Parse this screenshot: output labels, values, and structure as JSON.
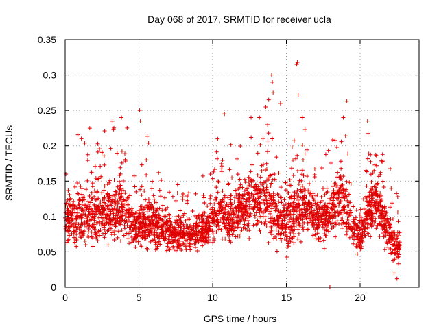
{
  "chart_data": {
    "type": "scatter",
    "title": "Day 068 of 2017, SRMTID for receiver ucla",
    "xlabel": "GPS time / hours",
    "ylabel": "SRMTID / TECUs",
    "xlim": [
      0,
      24
    ],
    "ylim": [
      0,
      0.35
    ],
    "xticks": [
      0,
      5,
      10,
      15,
      20
    ],
    "xtick_labels": [
      "0",
      "5",
      "10",
      "15",
      "20"
    ],
    "yticks": [
      0,
      0.05,
      0.1,
      0.15,
      0.2,
      0.25,
      0.3,
      0.35
    ],
    "ytick_labels": [
      "0",
      "0.05",
      "0.1",
      "0.15",
      "0.2",
      "0.25",
      "0.3",
      "0.35"
    ],
    "grid": true,
    "marker": "plus",
    "marker_color": "#e00000",
    "approx_point_count": 3000,
    "envelope": {
      "x": [
        0.0,
        0.5,
        1.0,
        1.5,
        2.0,
        2.5,
        3.0,
        3.5,
        4.0,
        4.5,
        5.0,
        5.5,
        6.0,
        6.5,
        7.0,
        7.5,
        8.0,
        8.5,
        9.0,
        9.5,
        10.0,
        10.5,
        11.0,
        11.5,
        12.0,
        12.5,
        13.0,
        13.5,
        14.0,
        14.5,
        15.0,
        15.5,
        16.0,
        16.5,
        17.0,
        17.5,
        18.0,
        18.5,
        19.0,
        19.5,
        20.0,
        20.5,
        21.0,
        21.5,
        22.0,
        22.5
      ],
      "median": [
        0.1,
        0.095,
        0.1,
        0.105,
        0.1,
        0.105,
        0.11,
        0.105,
        0.11,
        0.09,
        0.085,
        0.095,
        0.09,
        0.085,
        0.08,
        0.075,
        0.075,
        0.075,
        0.08,
        0.085,
        0.095,
        0.105,
        0.1,
        0.1,
        0.11,
        0.12,
        0.12,
        0.125,
        0.115,
        0.09,
        0.095,
        0.105,
        0.115,
        0.11,
        0.1,
        0.1,
        0.105,
        0.13,
        0.11,
        0.08,
        0.07,
        0.11,
        0.12,
        0.1,
        0.075,
        0.055
      ],
      "spread": [
        0.04,
        0.04,
        0.045,
        0.05,
        0.045,
        0.045,
        0.05,
        0.05,
        0.05,
        0.04,
        0.04,
        0.04,
        0.04,
        0.035,
        0.03,
        0.03,
        0.03,
        0.03,
        0.03,
        0.035,
        0.04,
        0.045,
        0.04,
        0.045,
        0.05,
        0.055,
        0.055,
        0.06,
        0.06,
        0.045,
        0.05,
        0.055,
        0.055,
        0.05,
        0.045,
        0.045,
        0.05,
        0.055,
        0.05,
        0.035,
        0.03,
        0.045,
        0.045,
        0.04,
        0.035,
        0.03
      ]
    },
    "notable_points": [
      {
        "x": 0.05,
        "y": 0.16
      },
      {
        "x": 1.1,
        "y": 0.21
      },
      {
        "x": 3.3,
        "y": 0.225
      },
      {
        "x": 4.2,
        "y": 0.225
      },
      {
        "x": 5.05,
        "y": 0.25
      },
      {
        "x": 5.1,
        "y": 0.235
      },
      {
        "x": 10.8,
        "y": 0.245
      },
      {
        "x": 13.6,
        "y": 0.255
      },
      {
        "x": 13.8,
        "y": 0.265
      },
      {
        "x": 14.0,
        "y": 0.3
      },
      {
        "x": 14.05,
        "y": 0.29
      },
      {
        "x": 14.1,
        "y": 0.275
      },
      {
        "x": 14.6,
        "y": 0.26
      },
      {
        "x": 15.7,
        "y": 0.315
      },
      {
        "x": 15.75,
        "y": 0.318
      },
      {
        "x": 15.8,
        "y": 0.272
      },
      {
        "x": 19.1,
        "y": 0.263
      },
      {
        "x": 20.5,
        "y": 0.235
      },
      {
        "x": 22.3,
        "y": 0.02
      },
      {
        "x": 22.5,
        "y": 0.012
      },
      {
        "x": 17.95,
        "y": 0.0
      },
      {
        "x": 17.95,
        "y": 0.0
      }
    ]
  }
}
